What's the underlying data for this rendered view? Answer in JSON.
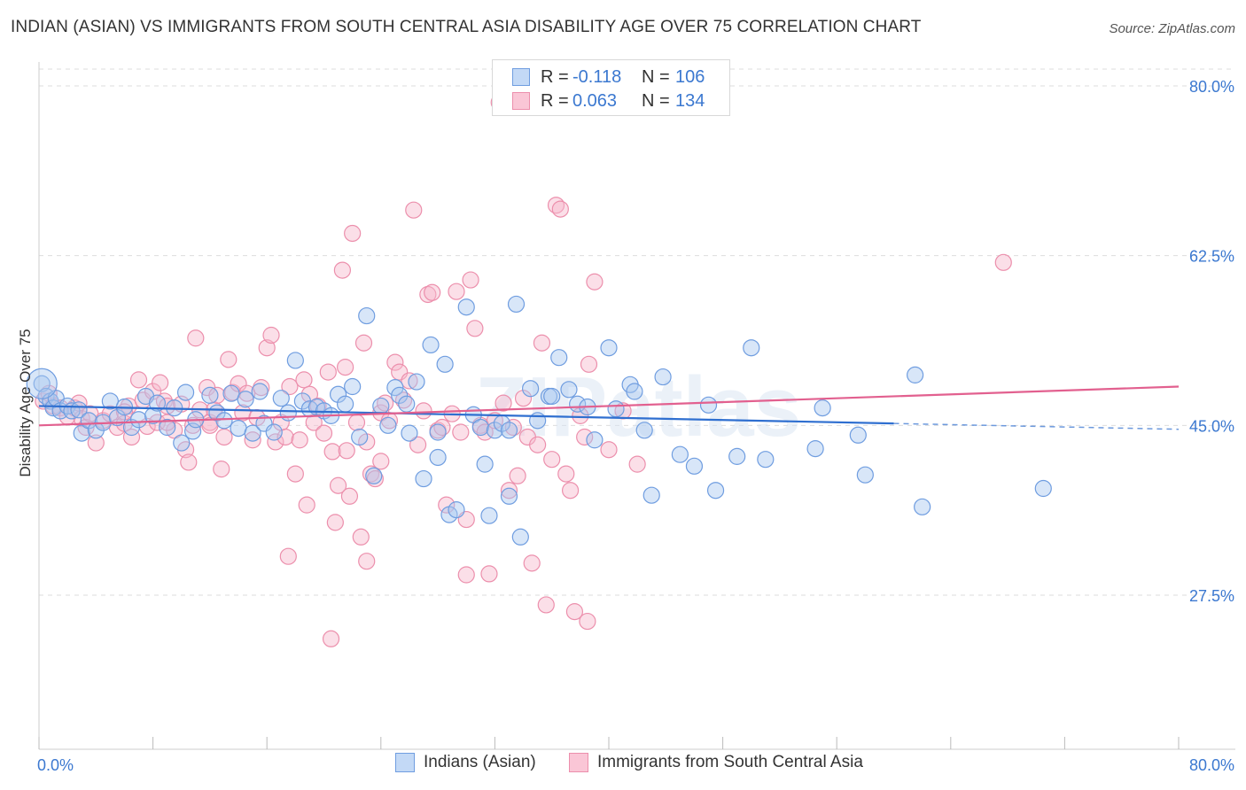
{
  "title": "INDIAN (ASIAN) VS IMMIGRANTS FROM SOUTH CENTRAL ASIA DISABILITY AGE OVER 75 CORRELATION CHART",
  "source": "Source: ZipAtlas.com",
  "watermark": "ZIPatlas",
  "legend": {
    "rows": [
      {
        "r_label": "R =",
        "r_value": "-0.118",
        "n_label": "N =",
        "n_value": "106"
      },
      {
        "r_label": "R =",
        "r_value": "0.063",
        "n_label": "N =",
        "n_value": "134"
      }
    ]
  },
  "bottom_legend": {
    "series1": "Indians (Asian)",
    "series2": "Immigrants from South Central Asia"
  },
  "colors": {
    "blue_fill": "#a9c8f0",
    "blue_stroke": "#6f9de0",
    "blue_line": "#2f6fd0",
    "pink_fill": "#f7b8cb",
    "pink_stroke": "#ec8fac",
    "pink_line": "#e2608f",
    "tick_text": "#3b78d0",
    "grid": "#dddddd"
  },
  "chart_data": {
    "type": "scatter",
    "title": "INDIAN (ASIAN) VS IMMIGRANTS FROM SOUTH CENTRAL ASIA DISABILITY AGE OVER 75 CORRELATION CHART",
    "xlabel": "",
    "ylabel": "Disability Age Over 75",
    "xlim": [
      0,
      80
    ],
    "ylim": [
      10,
      83
    ],
    "x_tick_labels": [
      "0.0%",
      "80.0%"
    ],
    "y_ticks": [
      27.5,
      45.0,
      62.5,
      80.0
    ],
    "y_tick_labels": [
      "27.5%",
      "45.0%",
      "62.5%",
      "80.0%"
    ],
    "series": [
      {
        "name": "Indians (Asian)",
        "trend": {
          "x0": 0,
          "y0": 47.0,
          "x1": 60,
          "y1": 45.2,
          "dashed_to_x": 80,
          "dashed_to_y": 44.6
        },
        "points": [
          [
            0.2,
            49.3
          ],
          [
            0.5,
            48.0
          ],
          [
            0.8,
            47.5
          ],
          [
            1.0,
            46.8
          ],
          [
            1.2,
            47.8
          ],
          [
            1.5,
            46.5
          ],
          [
            2.0,
            47.0
          ],
          [
            2.3,
            46.5
          ],
          [
            2.8,
            46.6
          ],
          [
            3.0,
            44.2
          ],
          [
            3.5,
            45.5
          ],
          [
            4.0,
            44.5
          ],
          [
            4.5,
            45.3
          ],
          [
            5.0,
            47.5
          ],
          [
            5.5,
            45.8
          ],
          [
            6.0,
            46.9
          ],
          [
            6.5,
            44.8
          ],
          [
            7.0,
            45.6
          ],
          [
            7.5,
            48.0
          ],
          [
            8.0,
            46.0
          ],
          [
            8.3,
            47.3
          ],
          [
            9.0,
            44.8
          ],
          [
            9.5,
            46.8
          ],
          [
            10.0,
            43.2
          ],
          [
            10.3,
            48.4
          ],
          [
            10.8,
            44.4
          ],
          [
            11.0,
            45.6
          ],
          [
            12.0,
            48.1
          ],
          [
            12.5,
            46.3
          ],
          [
            13.0,
            45.5
          ],
          [
            13.5,
            48.3
          ],
          [
            14.0,
            44.7
          ],
          [
            14.5,
            47.7
          ],
          [
            15.0,
            44.2
          ],
          [
            15.5,
            48.5
          ],
          [
            15.8,
            45.2
          ],
          [
            16.5,
            44.3
          ],
          [
            17.0,
            47.8
          ],
          [
            17.5,
            46.3
          ],
          [
            18.0,
            51.7
          ],
          [
            18.5,
            47.5
          ],
          [
            19.0,
            46.7
          ],
          [
            19.5,
            46.9
          ],
          [
            20.0,
            46.5
          ],
          [
            20.5,
            46.0
          ],
          [
            21.0,
            48.2
          ],
          [
            21.5,
            47.2
          ],
          [
            22.0,
            49.0
          ],
          [
            22.5,
            43.8
          ],
          [
            23.0,
            56.3
          ],
          [
            23.5,
            39.8
          ],
          [
            24.0,
            47.0
          ],
          [
            24.5,
            45.0
          ],
          [
            25.0,
            48.9
          ],
          [
            25.3,
            48.1
          ],
          [
            25.8,
            47.2
          ],
          [
            26.0,
            44.2
          ],
          [
            26.5,
            49.5
          ],
          [
            27.0,
            39.5
          ],
          [
            27.5,
            53.3
          ],
          [
            28.0,
            44.3
          ],
          [
            28.5,
            51.3
          ],
          [
            28.8,
            35.8
          ],
          [
            29.3,
            36.3
          ],
          [
            30.0,
            57.2
          ],
          [
            30.5,
            46.1
          ],
          [
            31.0,
            44.8
          ],
          [
            31.3,
            41.0
          ],
          [
            31.6,
            35.7
          ],
          [
            32.0,
            44.5
          ],
          [
            32.5,
            45.2
          ],
          [
            33.0,
            44.5
          ],
          [
            33.5,
            57.5
          ],
          [
            33.8,
            33.5
          ],
          [
            34.5,
            48.8
          ],
          [
            35.0,
            45.5
          ],
          [
            35.8,
            48.0
          ],
          [
            36.5,
            52.0
          ],
          [
            37.2,
            48.7
          ],
          [
            37.8,
            47.2
          ],
          [
            38.5,
            46.9
          ],
          [
            39.0,
            43.5
          ],
          [
            40.0,
            53.0
          ],
          [
            40.5,
            46.7
          ],
          [
            41.5,
            49.2
          ],
          [
            41.8,
            48.5
          ],
          [
            42.5,
            44.5
          ],
          [
            43.0,
            37.8
          ],
          [
            43.8,
            50.0
          ],
          [
            45.0,
            42.0
          ],
          [
            46.0,
            40.8
          ],
          [
            47.0,
            47.1
          ],
          [
            47.5,
            38.3
          ],
          [
            49.0,
            41.8
          ],
          [
            50.0,
            53.0
          ],
          [
            51.0,
            41.5
          ],
          [
            54.5,
            42.6
          ],
          [
            58.0,
            39.9
          ],
          [
            61.5,
            50.2
          ],
          [
            70.5,
            38.5
          ],
          [
            62.0,
            36.6
          ],
          [
            55.0,
            46.8
          ],
          [
            33.0,
            37.7
          ],
          [
            36.0,
            48.0
          ],
          [
            28.0,
            41.7
          ],
          [
            57.5,
            44.0
          ]
        ]
      },
      {
        "name": "Immigrants from South Central Asia",
        "trend": {
          "x0": 0,
          "y0": 45.0,
          "x1": 80,
          "y1": 49.0
        },
        "points": [
          [
            0.3,
            47.5
          ],
          [
            0.7,
            48.3
          ],
          [
            1.0,
            47.0
          ],
          [
            1.5,
            46.8
          ],
          [
            2.0,
            45.9
          ],
          [
            2.5,
            46.8
          ],
          [
            2.8,
            47.3
          ],
          [
            3.0,
            45.7
          ],
          [
            3.3,
            44.8
          ],
          [
            3.6,
            46.2
          ],
          [
            4.0,
            43.2
          ],
          [
            4.5,
            45.5
          ],
          [
            5.0,
            46.2
          ],
          [
            5.5,
            44.8
          ],
          [
            6.0,
            45.2
          ],
          [
            6.3,
            47.0
          ],
          [
            6.5,
            43.8
          ],
          [
            7.0,
            49.7
          ],
          [
            7.3,
            47.6
          ],
          [
            7.6,
            44.9
          ],
          [
            8.0,
            48.5
          ],
          [
            8.3,
            45.3
          ],
          [
            8.5,
            49.4
          ],
          [
            8.8,
            47.5
          ],
          [
            9.0,
            47.0
          ],
          [
            9.5,
            44.5
          ],
          [
            10.0,
            47.2
          ],
          [
            10.3,
            42.5
          ],
          [
            10.5,
            41.2
          ],
          [
            10.8,
            45.0
          ],
          [
            11.0,
            54.0
          ],
          [
            11.3,
            46.6
          ],
          [
            11.8,
            48.9
          ],
          [
            12.0,
            45.3
          ],
          [
            12.3,
            46.6
          ],
          [
            12.5,
            48.1
          ],
          [
            12.8,
            40.5
          ],
          [
            13.0,
            43.8
          ],
          [
            13.3,
            51.8
          ],
          [
            13.6,
            48.4
          ],
          [
            14.0,
            49.3
          ],
          [
            14.3,
            46.3
          ],
          [
            14.6,
            48.3
          ],
          [
            15.0,
            43.5
          ],
          [
            15.3,
            45.8
          ],
          [
            15.6,
            48.9
          ],
          [
            16.0,
            53.0
          ],
          [
            16.3,
            54.3
          ],
          [
            16.6,
            43.3
          ],
          [
            17.0,
            45.3
          ],
          [
            17.3,
            43.8
          ],
          [
            17.6,
            49.0
          ],
          [
            18.0,
            40.0
          ],
          [
            18.3,
            43.5
          ],
          [
            18.6,
            49.7
          ],
          [
            18.8,
            36.8
          ],
          [
            19.0,
            48.2
          ],
          [
            19.3,
            45.3
          ],
          [
            19.6,
            47.0
          ],
          [
            20.0,
            44.2
          ],
          [
            20.3,
            50.5
          ],
          [
            20.6,
            42.3
          ],
          [
            20.8,
            35.0
          ],
          [
            21.0,
            38.8
          ],
          [
            21.3,
            61.0
          ],
          [
            21.6,
            42.4
          ],
          [
            21.8,
            37.7
          ],
          [
            22.0,
            64.8
          ],
          [
            22.3,
            45.3
          ],
          [
            22.6,
            33.5
          ],
          [
            22.8,
            53.5
          ],
          [
            23.0,
            43.3
          ],
          [
            23.3,
            40.0
          ],
          [
            23.6,
            39.5
          ],
          [
            24.0,
            46.3
          ],
          [
            24.3,
            47.3
          ],
          [
            24.6,
            45.5
          ],
          [
            25.0,
            51.5
          ],
          [
            25.3,
            50.5
          ],
          [
            25.6,
            47.6
          ],
          [
            26.0,
            49.6
          ],
          [
            26.3,
            67.2
          ],
          [
            26.6,
            43.0
          ],
          [
            27.0,
            46.5
          ],
          [
            27.3,
            58.5
          ],
          [
            27.6,
            58.7
          ],
          [
            28.0,
            44.5
          ],
          [
            28.3,
            44.8
          ],
          [
            28.6,
            36.8
          ],
          [
            29.0,
            46.2
          ],
          [
            29.3,
            58.8
          ],
          [
            29.6,
            44.3
          ],
          [
            30.0,
            35.3
          ],
          [
            30.3,
            60.0
          ],
          [
            30.6,
            55.0
          ],
          [
            31.0,
            45.0
          ],
          [
            31.3,
            44.3
          ],
          [
            31.6,
            29.7
          ],
          [
            32.0,
            45.5
          ],
          [
            32.3,
            78.3
          ],
          [
            32.6,
            47.3
          ],
          [
            33.0,
            38.3
          ],
          [
            33.3,
            44.8
          ],
          [
            33.6,
            39.8
          ],
          [
            34.0,
            47.8
          ],
          [
            34.3,
            43.8
          ],
          [
            34.6,
            30.8
          ],
          [
            35.0,
            43.0
          ],
          [
            35.3,
            53.5
          ],
          [
            35.6,
            26.5
          ],
          [
            36.0,
            41.5
          ],
          [
            36.3,
            67.7
          ],
          [
            36.6,
            67.3
          ],
          [
            37.0,
            40.0
          ],
          [
            37.3,
            38.3
          ],
          [
            37.6,
            25.8
          ],
          [
            38.0,
            46.0
          ],
          [
            38.3,
            43.8
          ],
          [
            38.6,
            51.3
          ],
          [
            39.0,
            59.8
          ],
          [
            40.0,
            42.5
          ],
          [
            41.0,
            46.5
          ],
          [
            42.0,
            41.0
          ],
          [
            17.5,
            31.5
          ],
          [
            20.5,
            23.0
          ],
          [
            21.5,
            51.0
          ],
          [
            23.0,
            31.0
          ],
          [
            12.0,
            45.0
          ],
          [
            9.0,
            45.3
          ],
          [
            6.0,
            46.4
          ],
          [
            67.7,
            61.8
          ],
          [
            38.5,
            24.8
          ],
          [
            24.0,
            41.3
          ],
          [
            30.0,
            29.6
          ]
        ]
      }
    ]
  }
}
